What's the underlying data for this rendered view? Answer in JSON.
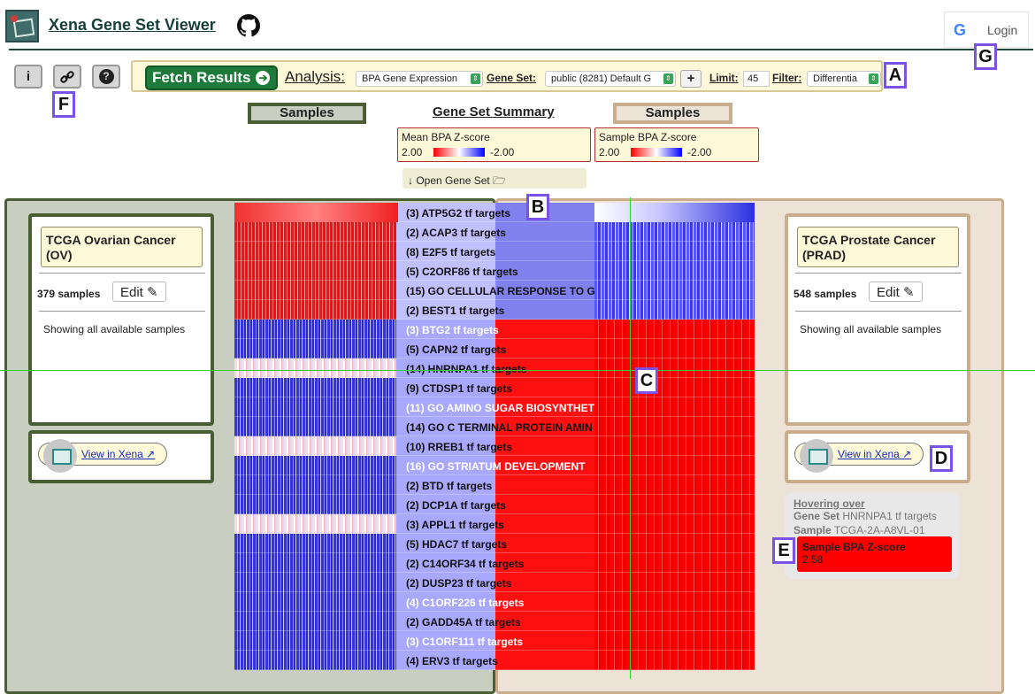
{
  "app": {
    "title": "Xena Gene Set Viewer",
    "login_label": "Login"
  },
  "toolbar": {
    "fetch_label": "Fetch Results",
    "analysis_label": "Analysis:",
    "analysis_value": "BPA Gene Expression",
    "geneset_label": "Gene Set:",
    "geneset_value": "public (8281) Default G",
    "plus_label": "+",
    "limit_label": "Limit:",
    "limit_value": "45",
    "filter_label": "Filter:",
    "filter_value": "Differentia"
  },
  "markers": {
    "a": "A",
    "b": "B",
    "c": "C",
    "d": "D",
    "e": "E",
    "f": "F",
    "g": "G"
  },
  "titles": {
    "samples_left": "Samples",
    "gene_set_summary": "Gene Set Summary",
    "samples_right": "Samples"
  },
  "legends": {
    "mean": {
      "title": "Mean BPA Z-score",
      "low": "2.00",
      "high": "-2.00"
    },
    "sample": {
      "title": "Sample BPA Z-score",
      "low": "2.00",
      "high": "-2.00"
    }
  },
  "open_gene_set": "↓ Open Gene Set 🗁",
  "left_cohort": {
    "name": "TCGA Ovarian Cancer (OV)",
    "count": "379 samples",
    "edit_label": "Edit ✎",
    "note": "Showing all available samples",
    "xena_link": "View in Xena ↗"
  },
  "right_cohort": {
    "name": "TCGA Prostate Cancer (PRAD)",
    "count": "548 samples",
    "edit_label": "Edit ✎",
    "note": "Showing all available samples",
    "xena_link": "View in Xena ↗"
  },
  "gene_sets": [
    {
      "label": "(3) ATP5G2 tf targets",
      "left": "red",
      "right": "blue",
      "light": false
    },
    {
      "label": "(2) ACAP3 tf targets",
      "left": "red",
      "right": "blue",
      "light": false
    },
    {
      "label": "(8) E2F5 tf targets",
      "left": "red",
      "right": "blue",
      "light": false
    },
    {
      "label": "(5) C2ORF86 tf targets",
      "left": "red",
      "right": "blue",
      "light": false
    },
    {
      "label": "(15) GO CELLULAR RESPONSE TO G",
      "left": "red",
      "right": "blue",
      "light": false
    },
    {
      "label": "(2) BEST1 tf targets",
      "left": "red",
      "right": "blue",
      "light": false
    },
    {
      "label": "(3) BTG2 tf targets",
      "left": "blue",
      "right": "red",
      "light": true
    },
    {
      "label": "(5) CAPN2 tf targets",
      "left": "blue",
      "right": "red",
      "light": false
    },
    {
      "label": "(14) HNRNPA1 tf targets",
      "left": "mix",
      "right": "red",
      "light": false
    },
    {
      "label": "(9) CTDSP1 tf targets",
      "left": "blue",
      "right": "red",
      "light": false
    },
    {
      "label": "(11) GO AMINO SUGAR BIOSYNTHET",
      "left": "blue",
      "right": "red",
      "light": true
    },
    {
      "label": "(14) GO C TERMINAL PROTEIN AMIN",
      "left": "blue",
      "right": "red",
      "light": false
    },
    {
      "label": "(10) RREB1 tf targets",
      "left": "mix",
      "right": "red",
      "light": false
    },
    {
      "label": "(16) GO STRIATUM DEVELOPMENT",
      "left": "blue",
      "right": "red",
      "light": true
    },
    {
      "label": "(2) BTD tf targets",
      "left": "blue",
      "right": "red",
      "light": false
    },
    {
      "label": "(2) DCP1A tf targets",
      "left": "blue",
      "right": "red",
      "light": false
    },
    {
      "label": "(3) APPL1 tf targets",
      "left": "mix",
      "right": "red",
      "light": false
    },
    {
      "label": "(5) HDAC7 tf targets",
      "left": "blue",
      "right": "red",
      "light": false
    },
    {
      "label": "(2) C14ORF34 tf targets",
      "left": "blue",
      "right": "red",
      "light": false
    },
    {
      "label": "(2) DUSP23 tf targets",
      "left": "blue",
      "right": "red",
      "light": false
    },
    {
      "label": "(4) C1ORF226 tf targets",
      "left": "blue",
      "right": "red",
      "light": true
    },
    {
      "label": "(2) GADD45A tf targets",
      "left": "blue",
      "right": "red",
      "light": false
    },
    {
      "label": "(3) C1ORF111 tf targets",
      "left": "blue",
      "right": "red",
      "light": true
    },
    {
      "label": "(4) ERV3 tf targets",
      "left": "blue",
      "right": "red",
      "light": false
    }
  ],
  "hover": {
    "title": "Hovering over",
    "geneset_label": "Gene Set",
    "geneset_value": "HNRNPA1 tf targets",
    "sample_label": "Sample",
    "sample_value": "TCGA-2A-A8VL-01",
    "score_label": "Sample BPA Z-score",
    "score_value": "2.58"
  },
  "colors": {
    "ov_border": "#4a5e34",
    "prad_border": "#c9ad8c",
    "fetch_green": "#1e7a3a",
    "marker": "#7a52e8"
  },
  "icons": [
    "github-icon",
    "google-icon",
    "info-icon",
    "link-icon",
    "help-icon",
    "external-link-icon",
    "folder-icon"
  ]
}
